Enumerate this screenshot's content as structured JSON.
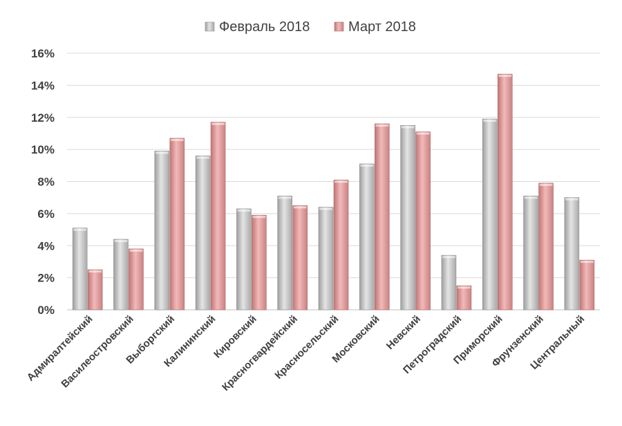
{
  "chart_data": {
    "type": "bar",
    "categories": [
      "Адмиралтейский",
      "Василеостровский",
      "Выборгский",
      "Калининский",
      "Кировский",
      "Красногвардейский",
      "Красносельский",
      "Московский",
      "Невский",
      "Петроградский",
      "Приморский",
      "Фрунзенский",
      "Центральный"
    ],
    "series": [
      {
        "name": "Февраль 2018",
        "color": "#c8c8c8",
        "values": [
          5.1,
          4.4,
          9.9,
          9.6,
          6.3,
          7.1,
          6.4,
          9.1,
          11.5,
          3.4,
          11.9,
          7.1,
          7.0
        ]
      },
      {
        "name": "Март 2018",
        "color": "#e6a3a3",
        "values": [
          2.5,
          3.8,
          10.7,
          11.7,
          5.9,
          6.5,
          8.1,
          11.6,
          11.1,
          1.5,
          14.7,
          7.9,
          3.1
        ]
      }
    ],
    "ylim": [
      0,
      16
    ],
    "yticks": [
      0,
      2,
      4,
      6,
      8,
      10,
      12,
      14,
      16
    ],
    "ytick_format": "%",
    "grid": true,
    "legend_position": "top-center"
  }
}
